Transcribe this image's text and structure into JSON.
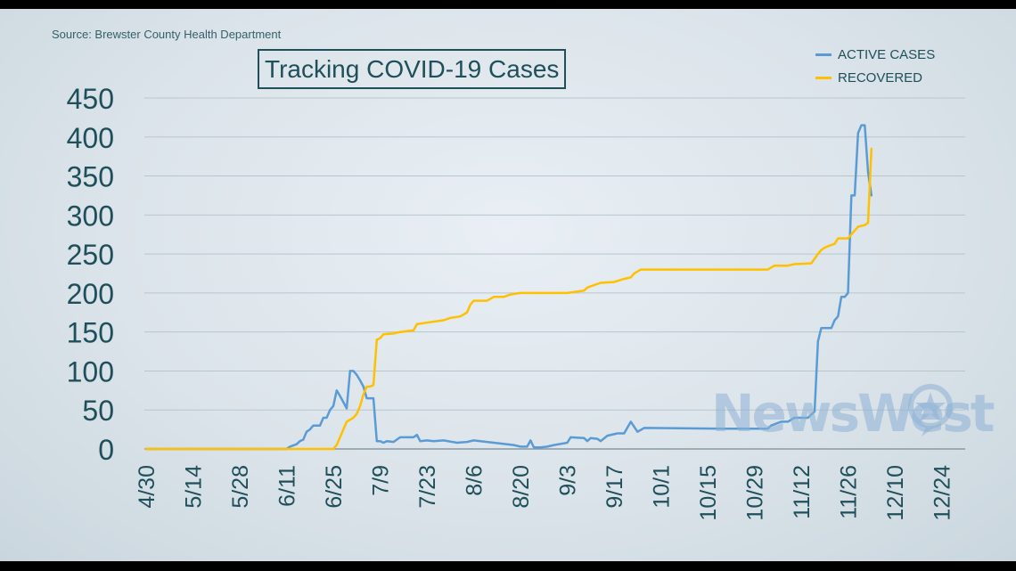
{
  "source": "Source: Brewster County Health Department",
  "title": "Tracking COVID-19 Cases",
  "watermark": "NewsWest",
  "chart_data": {
    "type": "line",
    "title": "Tracking COVID-19 Cases",
    "xlabel": "",
    "ylabel": "",
    "ylim": [
      0,
      450
    ],
    "yticks": [
      0,
      50,
      100,
      150,
      200,
      250,
      300,
      350,
      400,
      450
    ],
    "x_ticks": [
      "4/30",
      "5/14",
      "5/28",
      "6/11",
      "6/25",
      "7/9",
      "7/23",
      "8/6",
      "8/20",
      "9/3",
      "9/17",
      "10/1",
      "10/15",
      "10/29",
      "11/12",
      "11/26",
      "12/10",
      "12/24"
    ],
    "grid": true,
    "legend_position": "top-right",
    "series": [
      {
        "name": "ACTIVE CASES",
        "color": "#5b9bd5",
        "points": [
          [
            "4/30",
            0
          ],
          [
            "6/11",
            0
          ],
          [
            "6/12",
            3
          ],
          [
            "6/14",
            6
          ],
          [
            "6/15",
            10
          ],
          [
            "6/16",
            12
          ],
          [
            "6/17",
            22
          ],
          [
            "6/18",
            25
          ],
          [
            "6/19",
            30
          ],
          [
            "6/21",
            30
          ],
          [
            "6/22",
            40
          ],
          [
            "6/23",
            40
          ],
          [
            "6/24",
            50
          ],
          [
            "6/25",
            55
          ],
          [
            "6/26",
            75
          ],
          [
            "6/27",
            68
          ],
          [
            "6/28",
            60
          ],
          [
            "6/29",
            52
          ],
          [
            "6/30",
            100
          ],
          [
            "7/1",
            100
          ],
          [
            "7/2",
            95
          ],
          [
            "7/3",
            88
          ],
          [
            "7/4",
            80
          ],
          [
            "7/5",
            65
          ],
          [
            "7/7",
            65
          ],
          [
            "7/8",
            10
          ],
          [
            "7/9",
            10
          ],
          [
            "7/10",
            8
          ],
          [
            "7/11",
            10
          ],
          [
            "7/13",
            9
          ],
          [
            "7/14",
            12
          ],
          [
            "7/15",
            15
          ],
          [
            "7/19",
            15
          ],
          [
            "7/20",
            18
          ],
          [
            "7/21",
            10
          ],
          [
            "7/23",
            11
          ],
          [
            "7/25",
            10
          ],
          [
            "7/28",
            11
          ],
          [
            "8/1",
            8
          ],
          [
            "8/4",
            9
          ],
          [
            "8/6",
            11
          ],
          [
            "8/10",
            9
          ],
          [
            "8/14",
            7
          ],
          [
            "8/18",
            5
          ],
          [
            "8/20",
            3
          ],
          [
            "8/22",
            3
          ],
          [
            "8/23",
            11
          ],
          [
            "8/24",
            2
          ],
          [
            "8/26",
            2
          ],
          [
            "8/28",
            3
          ],
          [
            "8/30",
            5
          ],
          [
            "9/3",
            8
          ],
          [
            "9/4",
            15
          ],
          [
            "9/8",
            14
          ],
          [
            "9/9",
            10
          ],
          [
            "9/10",
            14
          ],
          [
            "9/12",
            13
          ],
          [
            "9/13",
            10
          ],
          [
            "9/15",
            17
          ],
          [
            "9/18",
            20
          ],
          [
            "9/20",
            20
          ],
          [
            "9/22",
            35
          ],
          [
            "9/24",
            22
          ],
          [
            "9/26",
            27
          ],
          [
            "10/20",
            26
          ],
          [
            "11/2",
            26
          ],
          [
            "11/3",
            30
          ],
          [
            "11/6",
            35
          ],
          [
            "11/8",
            35
          ],
          [
            "11/10",
            40
          ],
          [
            "11/14",
            40
          ],
          [
            "11/16",
            48
          ],
          [
            "11/17",
            138
          ],
          [
            "11/18",
            155
          ],
          [
            "11/21",
            155
          ],
          [
            "11/22",
            165
          ],
          [
            "11/23",
            170
          ],
          [
            "11/24",
            195
          ],
          [
            "11/25",
            195
          ],
          [
            "11/26",
            200
          ],
          [
            "11/27",
            325
          ],
          [
            "11/28",
            325
          ],
          [
            "11/29",
            405
          ],
          [
            "11/30",
            415
          ],
          [
            "12/1",
            415
          ],
          [
            "12/2",
            355
          ],
          [
            "12/3",
            325
          ]
        ]
      },
      {
        "name": "RECOVERED",
        "color": "#ffc000",
        "points": [
          [
            "4/30",
            0
          ],
          [
            "6/25",
            0
          ],
          [
            "6/26",
            5
          ],
          [
            "6/27",
            15
          ],
          [
            "6/28",
            25
          ],
          [
            "6/29",
            35
          ],
          [
            "7/1",
            40
          ],
          [
            "7/2",
            45
          ],
          [
            "7/3",
            55
          ],
          [
            "7/4",
            70
          ],
          [
            "7/5",
            80
          ],
          [
            "7/6",
            80
          ],
          [
            "7/7",
            82
          ],
          [
            "7/8",
            140
          ],
          [
            "7/9",
            142
          ],
          [
            "7/10",
            147
          ],
          [
            "7/13",
            148
          ],
          [
            "7/15",
            150
          ],
          [
            "7/19",
            152
          ],
          [
            "7/20",
            160
          ],
          [
            "7/23",
            162
          ],
          [
            "7/28",
            165
          ],
          [
            "7/30",
            168
          ],
          [
            "8/2",
            170
          ],
          [
            "8/4",
            175
          ],
          [
            "8/5",
            185
          ],
          [
            "8/6",
            190
          ],
          [
            "8/10",
            190
          ],
          [
            "8/12",
            195
          ],
          [
            "8/15",
            195
          ],
          [
            "8/17",
            198
          ],
          [
            "8/20",
            200
          ],
          [
            "8/23",
            200
          ],
          [
            "9/3",
            200
          ],
          [
            "9/8",
            203
          ],
          [
            "9/9",
            207
          ],
          [
            "9/11",
            210
          ],
          [
            "9/13",
            213
          ],
          [
            "9/17",
            214
          ],
          [
            "9/20",
            218
          ],
          [
            "9/22",
            220
          ],
          [
            "9/23",
            225
          ],
          [
            "9/25",
            230
          ],
          [
            "11/2",
            230
          ],
          [
            "11/4",
            235
          ],
          [
            "11/8",
            235
          ],
          [
            "11/10",
            237
          ],
          [
            "11/15",
            238
          ],
          [
            "11/17",
            250
          ],
          [
            "11/18",
            255
          ],
          [
            "11/19",
            258
          ],
          [
            "11/20",
            260
          ],
          [
            "11/22",
            263
          ],
          [
            "11/23",
            270
          ],
          [
            "11/26",
            270
          ],
          [
            "11/27",
            275
          ],
          [
            "11/28",
            280
          ],
          [
            "11/29",
            285
          ],
          [
            "12/1",
            287
          ],
          [
            "12/2",
            290
          ],
          [
            "12/3",
            385
          ]
        ]
      }
    ]
  }
}
